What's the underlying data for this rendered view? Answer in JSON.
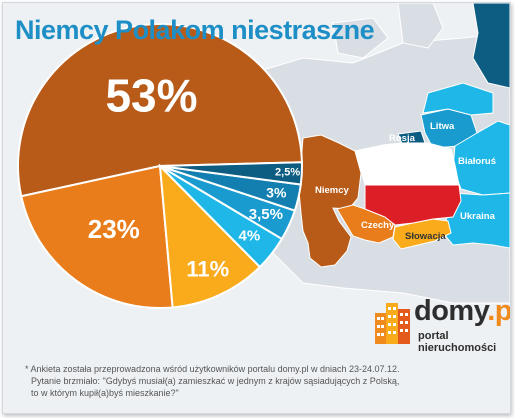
{
  "title": "Niemcy Polakom niestraszne",
  "chart_data": {
    "type": "pie",
    "title": "Niemcy Polakom niestraszne",
    "slices": [
      {
        "label": "Niemcy",
        "value": 53,
        "display": "53%",
        "color": "#b85b18"
      },
      {
        "label": "Rosja",
        "value": 23,
        "display": "23%",
        "color": "#e97d1b"
      },
      {
        "label": "Czechy",
        "value": 11,
        "display": "11%",
        "color": "#f9ab1c"
      },
      {
        "label": "Litwa",
        "value": 4,
        "display": "4%",
        "color": "#1eb7e7"
      },
      {
        "label": "Białoruś",
        "value": 3.5,
        "display": "3,5%",
        "color": "#1a9bd0"
      },
      {
        "label": "Słowacja",
        "value": 3,
        "display": "3%",
        "color": "#137fb0"
      },
      {
        "label": "Ukraina",
        "value": 2.5,
        "display": "2,5%",
        "color": "#0d5c81"
      }
    ]
  },
  "map": {
    "labels": {
      "rosja": "Rosja",
      "litwa": "Litwa",
      "bialorus": "Białoruś",
      "niemcy": "Niemcy",
      "czechy": "Czechy",
      "slowacja": "Słowacja",
      "ukraina": "Ukraina"
    }
  },
  "logo": {
    "name": "domy",
    "dot": ".pl",
    "tagline": "portal nieruchomości"
  },
  "footnote": {
    "line1": "* Ankieta została przeprowadzona wśród użytkowników portalu domy.pl w dniach 23-24.07.12.",
    "line2": "Pytanie brzmiało: \"Gdybyś musiał(a) zamieszkać w jednym z krajów sąsiadujących z Polską,",
    "line3": "to w którym kupił(a)byś mieszkanie?\""
  }
}
